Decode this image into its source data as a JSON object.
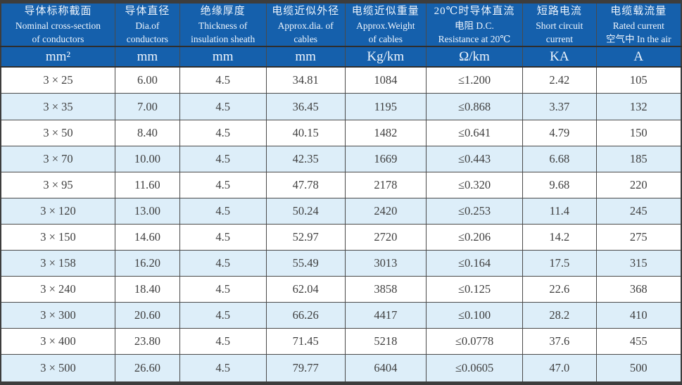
{
  "table": {
    "header_cells": [
      {
        "lines": [
          "导体标称截面",
          "Nominal cross-section",
          "of conductors"
        ]
      },
      {
        "lines": [
          "导体直径",
          "Dia.of",
          "conductors"
        ]
      },
      {
        "lines": [
          "绝缘厚度",
          "Thickness of",
          "insulation sheath"
        ]
      },
      {
        "lines": [
          "电缆近似外径",
          "Approx.dia. of",
          "cables"
        ]
      },
      {
        "lines": [
          "电缆近似重量",
          "Approx.Weight",
          "of cables"
        ]
      },
      {
        "lines": [
          "20℃时导体直流",
          "电阻 D.C.",
          "Resistance at 20℃"
        ]
      },
      {
        "lines": [
          "短路电流",
          "Short circuit",
          "current"
        ]
      },
      {
        "lines": [
          "电缆载流量",
          "Rated current",
          "空气中 In the air"
        ]
      }
    ],
    "units": [
      "mm²",
      "mm",
      "mm",
      "mm",
      "Kg/km",
      "Ω/km",
      "KA",
      "A"
    ],
    "rows": [
      [
        "3 × 25",
        "6.00",
        "4.5",
        "34.81",
        "1084",
        "≤1.200",
        "2.42",
        "105"
      ],
      [
        "3 × 35",
        "7.00",
        "4.5",
        "36.45",
        "1195",
        "≤0.868",
        "3.37",
        "132"
      ],
      [
        "3 × 50",
        "8.40",
        "4.5",
        "40.15",
        "1482",
        "≤0.641",
        "4.79",
        "150"
      ],
      [
        "3 × 70",
        "10.00",
        "4.5",
        "42.35",
        "1669",
        "≤0.443",
        "6.68",
        "185"
      ],
      [
        "3 × 95",
        "11.60",
        "4.5",
        "47.78",
        "2178",
        "≤0.320",
        "9.68",
        "220"
      ],
      [
        "3 × 120",
        "13.00",
        "4.5",
        "50.24",
        "2420",
        "≤0.253",
        "11.4",
        "245"
      ],
      [
        "3 × 150",
        "14.60",
        "4.5",
        "52.97",
        "2720",
        "≤0.206",
        "14.2",
        "275"
      ],
      [
        "3 × 158",
        "16.20",
        "4.5",
        "55.49",
        "3013",
        "≤0.164",
        "17.5",
        "315"
      ],
      [
        "3 × 240",
        "18.40",
        "4.5",
        "62.04",
        "3858",
        "≤0.125",
        "22.6",
        "368"
      ],
      [
        "3 × 300",
        "20.60",
        "4.5",
        "66.26",
        "4417",
        "≤0.100",
        "28.2",
        "410"
      ],
      [
        "3 × 400",
        "23.80",
        "4.5",
        "71.45",
        "5218",
        "≤0.0778",
        "37.6",
        "455"
      ],
      [
        "3 × 500",
        "26.60",
        "4.5",
        "79.77",
        "6404",
        "≤0.0605",
        "47.0",
        "500"
      ]
    ]
  },
  "colors": {
    "header_blue": "#1560ac",
    "stripe_blue": "#ddeef9",
    "border_dark": "#3d3d3d",
    "grid_line": "#4a4a4a",
    "data_text": "#3f3f3f",
    "header_text": "#eef5fd"
  }
}
